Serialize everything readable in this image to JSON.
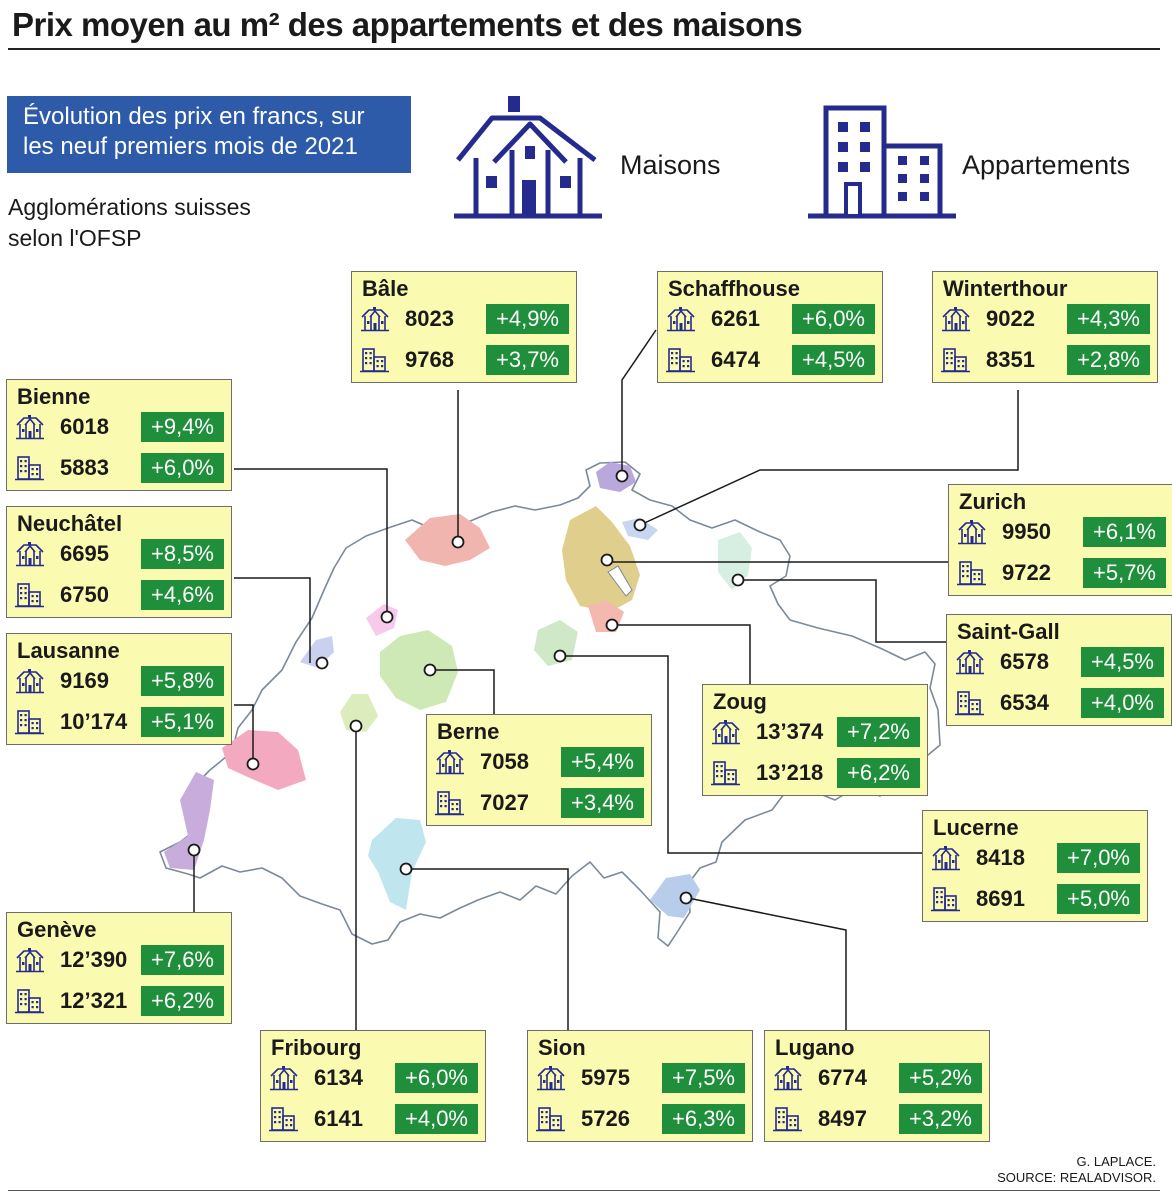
{
  "title": "Prix moyen au m² des appartements et des maisons",
  "subtitle_lines": [
    "Évolution des prix en francs, sur",
    "les neuf premiers mois de 2021"
  ],
  "caption_lines": [
    "Agglomérations suisses",
    "selon l'OFSP"
  ],
  "legend": {
    "maisons": "Maisons",
    "appartements": "Appartements"
  },
  "icons": {
    "house": "house-icon",
    "apartment": "apartment-building-icon"
  },
  "colors": {
    "accent_blue": "#2d5ba9",
    "icon_navy": "#252a8e",
    "card_yellow": "#fafab0",
    "change_green": "#1f8f3c"
  },
  "cities": [
    {
      "name": "Bâle",
      "maisons": "8023",
      "maisons_change": "+4,9%",
      "appartements": "9768",
      "appartements_change": "+3,7%"
    },
    {
      "name": "Schaffhouse",
      "maisons": "6261",
      "maisons_change": "+6,0%",
      "appartements": "6474",
      "appartements_change": "+4,5%"
    },
    {
      "name": "Winterthour",
      "maisons": "9022",
      "maisons_change": "+4,3%",
      "appartements": "8351",
      "appartements_change": "+2,8%"
    },
    {
      "name": "Bienne",
      "maisons": "6018",
      "maisons_change": "+9,4%",
      "appartements": "5883",
      "appartements_change": "+6,0%"
    },
    {
      "name": "Neuchâtel",
      "maisons": "6695",
      "maisons_change": "+8,5%",
      "appartements": "6750",
      "appartements_change": "+4,6%"
    },
    {
      "name": "Lausanne",
      "maisons": "9169",
      "maisons_change": "+5,8%",
      "appartements": "10’174",
      "appartements_change": "+5,1%"
    },
    {
      "name": "Zurich",
      "maisons": "9950",
      "maisons_change": "+6,1%",
      "appartements": "9722",
      "appartements_change": "+5,7%"
    },
    {
      "name": "Saint-Gall",
      "maisons": "6578",
      "maisons_change": "+4,5%",
      "appartements": "6534",
      "appartements_change": "+4,0%"
    },
    {
      "name": "Berne",
      "maisons": "7058",
      "maisons_change": "+5,4%",
      "appartements": "7027",
      "appartements_change": "+3,4%"
    },
    {
      "name": "Zoug",
      "maisons": "13’374",
      "maisons_change": "+7,2%",
      "appartements": "13’218",
      "appartements_change": "+6,2%"
    },
    {
      "name": "Lucerne",
      "maisons": "8418",
      "maisons_change": "+7,0%",
      "appartements": "8691",
      "appartements_change": "+5,0%"
    },
    {
      "name": "Genève",
      "maisons": "12’390",
      "maisons_change": "+7,6%",
      "appartements": "12’321",
      "appartements_change": "+6,2%"
    },
    {
      "name": "Fribourg",
      "maisons": "6134",
      "maisons_change": "+6,0%",
      "appartements": "6141",
      "appartements_change": "+4,0%"
    },
    {
      "name": "Sion",
      "maisons": "5975",
      "maisons_change": "+7,5%",
      "appartements": "5726",
      "appartements_change": "+6,3%"
    },
    {
      "name": "Lugano",
      "maisons": "6774",
      "maisons_change": "+5,2%",
      "appartements": "8497",
      "appartements_change": "+3,2%"
    }
  ],
  "credit_lines": [
    "G. LAPLACE.",
    "SOURCE: REALADVISOR."
  ]
}
